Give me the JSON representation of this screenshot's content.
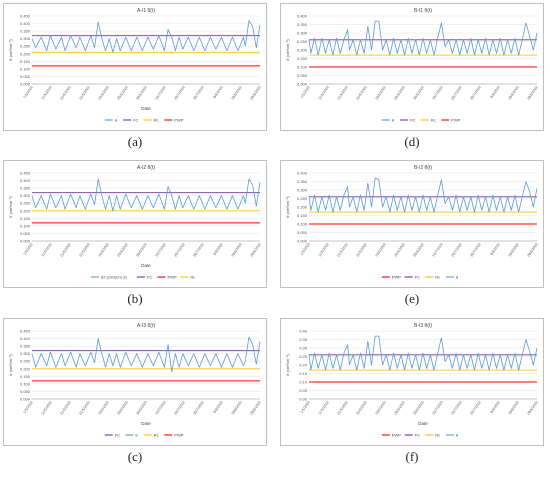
{
  "chart_data": [
    {
      "type": "line",
      "panel_label": "(a)",
      "title": "A-I1 θ(t)",
      "xlabel": "Date",
      "ylabel": "θ (cm³cm⁻³)",
      "ylim": [
        0,
        0.45
      ],
      "yticks": [
        "0.000",
        "0.050",
        "0.100",
        "0.150",
        "0.200",
        "0.250",
        "0.300",
        "0.350",
        "0.400",
        "0.450"
      ],
      "xticks": [
        "1/5/2022",
        "11/5/2022",
        "21/5/2022",
        "31/5/2022",
        "10/6/2022",
        "20/6/2022",
        "30/6/2022",
        "10/7/2022",
        "20/7/2022",
        "30/7/2022",
        "9/8/2022",
        "19/8/2022",
        "29/8/2022"
      ],
      "fc": 0.32,
      "rc": 0.21,
      "pwp": 0.12,
      "theta_x": [
        0,
        2,
        5,
        8,
        10,
        13,
        16,
        18,
        21,
        24,
        26,
        29,
        32,
        34,
        36,
        38,
        40,
        42,
        44,
        46,
        48,
        51,
        54,
        57,
        60,
        63,
        66,
        69,
        72,
        74,
        76,
        78,
        80,
        82,
        85,
        88,
        91,
        94,
        97,
        100,
        103,
        106,
        109,
        112,
        115,
        116,
        118,
        120,
        122,
        124
      ],
      "theta_y": [
        0.3,
        0.24,
        0.31,
        0.22,
        0.32,
        0.23,
        0.31,
        0.22,
        0.32,
        0.24,
        0.31,
        0.22,
        0.32,
        0.24,
        0.41,
        0.3,
        0.22,
        0.3,
        0.21,
        0.3,
        0.22,
        0.31,
        0.22,
        0.31,
        0.22,
        0.31,
        0.23,
        0.32,
        0.22,
        0.36,
        0.31,
        0.22,
        0.31,
        0.23,
        0.31,
        0.22,
        0.31,
        0.22,
        0.31,
        0.23,
        0.31,
        0.22,
        0.31,
        0.22,
        0.31,
        0.25,
        0.42,
        0.38,
        0.24,
        0.39
      ],
      "legend": [
        "θ",
        "FC",
        "Rc",
        "PWP"
      ],
      "colors": {
        "theta": "#5b9bd5",
        "fc": "#7030a0",
        "rc": "#ffc000",
        "pwp": "#ff0000"
      }
    },
    {
      "type": "line",
      "panel_label": "(b)",
      "title": "A-I2 θ(t)",
      "xlabel": "Date",
      "ylabel": "θ (cm³cm⁻³)",
      "ylim": [
        0,
        0.45
      ],
      "yticks": [
        "0.000",
        "0.050",
        "0.100",
        "0.150",
        "0.200",
        "0.250",
        "0.300",
        "0.350",
        "0.400",
        "0.450"
      ],
      "xticks": [
        "1/5/2022",
        "11/5/2022",
        "21/5/2022",
        "31/5/2022",
        "10/6/2022",
        "20/6/2022",
        "30/6/2022",
        "10/7/2022",
        "20/7/2022",
        "30/7/2022",
        "9/8/2022",
        "19/8/2022",
        "29/8/2022"
      ],
      "fc": 0.32,
      "rc": 0.2,
      "pwp": 0.12,
      "theta_x": [
        0,
        2,
        5,
        8,
        10,
        13,
        16,
        18,
        21,
        24,
        26,
        29,
        32,
        34,
        36,
        38,
        40,
        42,
        44,
        46,
        48,
        51,
        54,
        57,
        60,
        63,
        66,
        69,
        72,
        74,
        76,
        78,
        80,
        82,
        85,
        88,
        91,
        94,
        97,
        100,
        103,
        106,
        109,
        112,
        115,
        116,
        118,
        120,
        122,
        124
      ],
      "theta_y": [
        0.3,
        0.22,
        0.3,
        0.21,
        0.31,
        0.22,
        0.3,
        0.21,
        0.31,
        0.22,
        0.3,
        0.21,
        0.31,
        0.24,
        0.41,
        0.3,
        0.21,
        0.3,
        0.2,
        0.3,
        0.21,
        0.31,
        0.22,
        0.3,
        0.21,
        0.3,
        0.22,
        0.31,
        0.21,
        0.36,
        0.3,
        0.21,
        0.3,
        0.22,
        0.3,
        0.21,
        0.3,
        0.21,
        0.3,
        0.22,
        0.3,
        0.21,
        0.3,
        0.21,
        0.3,
        0.25,
        0.41,
        0.37,
        0.23,
        0.39
      ],
      "legend": [
        "θ2 (cm3/cm-3)",
        "FC",
        "PWP",
        "Rc"
      ],
      "colors": {
        "theta": "#5b9bd5",
        "fc": "#7030a0",
        "rc": "#ffc000",
        "pwp": "#ff0000"
      }
    },
    {
      "type": "line",
      "panel_label": "(c)",
      "title": "A-I3 θ(t)",
      "xlabel": "Date",
      "ylabel": "θ (cm³cm⁻³)",
      "ylim": [
        0,
        0.45
      ],
      "yticks": [
        "0.000",
        "0.050",
        "0.100",
        "0.150",
        "0.200",
        "0.250",
        "0.300",
        "0.350",
        "0.400",
        "0.450"
      ],
      "xticks": [
        "1/5/2022",
        "11/5/2022",
        "21/5/2022",
        "31/5/2022",
        "10/6/2022",
        "20/6/2022",
        "30/6/2022",
        "10/7/2022",
        "20/7/2022",
        "30/7/2022",
        "9/8/2022",
        "19/8/2022",
        "29/8/2022"
      ],
      "fc": 0.32,
      "rc": 0.2,
      "pwp": 0.12,
      "theta_x": [
        0,
        2,
        5,
        8,
        10,
        13,
        16,
        18,
        21,
        24,
        26,
        29,
        32,
        34,
        36,
        38,
        40,
        42,
        44,
        46,
        48,
        51,
        54,
        57,
        60,
        63,
        66,
        69,
        72,
        74,
        76,
        78,
        80,
        82,
        85,
        88,
        91,
        94,
        97,
        100,
        103,
        106,
        109,
        112,
        115,
        116,
        118,
        120,
        122,
        124
      ],
      "theta_y": [
        0.3,
        0.21,
        0.3,
        0.22,
        0.31,
        0.21,
        0.3,
        0.22,
        0.31,
        0.21,
        0.3,
        0.22,
        0.31,
        0.24,
        0.4,
        0.3,
        0.21,
        0.3,
        0.22,
        0.3,
        0.21,
        0.31,
        0.22,
        0.3,
        0.21,
        0.3,
        0.22,
        0.31,
        0.21,
        0.36,
        0.18,
        0.3,
        0.21,
        0.3,
        0.22,
        0.3,
        0.21,
        0.3,
        0.22,
        0.3,
        0.21,
        0.3,
        0.21,
        0.3,
        0.22,
        0.25,
        0.41,
        0.36,
        0.23,
        0.38
      ],
      "legend": [
        "FC",
        "θ",
        "Rc",
        "PWP"
      ],
      "colors": {
        "theta": "#5b9bd5",
        "fc": "#7030a0",
        "rc": "#ffc000",
        "pwp": "#ff0000"
      }
    },
    {
      "type": "line",
      "panel_label": "(d)",
      "title": "B-I1 θ(t)",
      "xlabel": "",
      "ylabel": "θ (cm³cm⁻³)",
      "ylim": [
        0,
        0.4
      ],
      "yticks": [
        "0.000",
        "0.050",
        "0.100",
        "0.150",
        "0.200",
        "0.250",
        "0.300",
        "0.350",
        "0.400"
      ],
      "xticks": [
        "1/5/2022",
        "11/5/2022",
        "21/5/2022",
        "31/5/2022",
        "10/6/2022",
        "20/6/2022",
        "30/6/2022",
        "10/7/2022",
        "20/7/2022",
        "30/7/2022",
        "9/8/2022",
        "19/8/2022",
        "29/8/2022"
      ],
      "fc": 0.26,
      "rc": 0.17,
      "pwp": 0.1,
      "theta_x": [
        0,
        1,
        3,
        5,
        7,
        9,
        11,
        13,
        15,
        17,
        19,
        21,
        22,
        24,
        26,
        28,
        30,
        32,
        34,
        36,
        38,
        40,
        42,
        44,
        46,
        48,
        50,
        52,
        54,
        56,
        58,
        60,
        62,
        64,
        66,
        68,
        70,
        72,
        74,
        76,
        78,
        80,
        82,
        84,
        86,
        88,
        90,
        92,
        94,
        96,
        98,
        100,
        102,
        104,
        106,
        108,
        110,
        112,
        114,
        116,
        118,
        120,
        122,
        124
      ],
      "theta_y": [
        0.26,
        0.18,
        0.27,
        0.17,
        0.27,
        0.18,
        0.26,
        0.17,
        0.27,
        0.18,
        0.26,
        0.32,
        0.2,
        0.26,
        0.17,
        0.26,
        0.18,
        0.34,
        0.2,
        0.37,
        0.37,
        0.2,
        0.26,
        0.17,
        0.27,
        0.18,
        0.26,
        0.17,
        0.27,
        0.18,
        0.26,
        0.17,
        0.27,
        0.18,
        0.26,
        0.17,
        0.27,
        0.36,
        0.22,
        0.26,
        0.18,
        0.26,
        0.17,
        0.26,
        0.18,
        0.27,
        0.17,
        0.26,
        0.18,
        0.27,
        0.17,
        0.26,
        0.18,
        0.27,
        0.17,
        0.26,
        0.18,
        0.27,
        0.17,
        0.26,
        0.36,
        0.28,
        0.2,
        0.3
      ],
      "legend": [
        "θ",
        "FC",
        "Rc",
        "PWP"
      ],
      "colors": {
        "theta": "#5b9bd5",
        "fc": "#7030a0",
        "rc": "#ffc000",
        "pwp": "#ff0000"
      }
    },
    {
      "type": "line",
      "panel_label": "(e)",
      "title": "B-I2 θ(t)",
      "xlabel": "",
      "ylabel": "θ (cm³cm⁻³)",
      "ylim": [
        0,
        0.4
      ],
      "yticks": [
        "0.000",
        "0.050",
        "0.100",
        "0.150",
        "0.200",
        "0.250",
        "0.300",
        "0.350",
        "0.400"
      ],
      "xticks": [
        "1/5/2022",
        "11/5/2022",
        "21/5/2022",
        "31/5/2022",
        "10/6/2022",
        "20/6/2022",
        "30/6/2022",
        "10/7/2022",
        "20/7/2022",
        "30/7/2022",
        "9/8/2022",
        "19/8/2022",
        "29/8/2022"
      ],
      "fc": 0.26,
      "rc": 0.17,
      "pwp": 0.1,
      "theta_x": [
        0,
        1,
        3,
        5,
        7,
        9,
        11,
        13,
        15,
        17,
        19,
        21,
        22,
        24,
        26,
        28,
        30,
        32,
        34,
        36,
        38,
        40,
        42,
        44,
        46,
        48,
        50,
        52,
        54,
        56,
        58,
        60,
        62,
        64,
        66,
        68,
        70,
        72,
        74,
        76,
        78,
        80,
        82,
        84,
        86,
        88,
        90,
        92,
        94,
        96,
        98,
        100,
        102,
        104,
        106,
        108,
        110,
        112,
        114,
        116,
        118,
        120,
        122,
        124
      ],
      "theta_y": [
        0.26,
        0.18,
        0.27,
        0.17,
        0.26,
        0.18,
        0.27,
        0.17,
        0.26,
        0.18,
        0.27,
        0.32,
        0.2,
        0.26,
        0.17,
        0.27,
        0.18,
        0.34,
        0.2,
        0.37,
        0.36,
        0.2,
        0.26,
        0.17,
        0.27,
        0.18,
        0.26,
        0.17,
        0.27,
        0.18,
        0.26,
        0.17,
        0.27,
        0.18,
        0.26,
        0.17,
        0.27,
        0.36,
        0.22,
        0.26,
        0.18,
        0.27,
        0.17,
        0.26,
        0.18,
        0.26,
        0.17,
        0.27,
        0.18,
        0.26,
        0.17,
        0.27,
        0.18,
        0.26,
        0.17,
        0.26,
        0.18,
        0.27,
        0.17,
        0.26,
        0.35,
        0.29,
        0.2,
        0.31
      ],
      "legend": [
        "PWP",
        "FC",
        "Rc",
        "θ"
      ],
      "colors": {
        "theta": "#5b9bd5",
        "fc": "#7030a0",
        "rc": "#ffc000",
        "pwp": "#ff0000"
      }
    },
    {
      "type": "line",
      "panel_label": "(f)",
      "title": "B-I3 θ(t)",
      "xlabel": "Date",
      "ylabel": "θ (cm³cm⁻³)",
      "ylim": [
        0,
        0.4
      ],
      "yticks": [
        "0.00",
        "0.05",
        "0.10",
        "0.15",
        "0.20",
        "0.25",
        "0.30",
        "0.35",
        "0.40"
      ],
      "xticks": [
        "1/5/2022",
        "11/5/2022",
        "21/5/2022",
        "31/5/2022",
        "10/6/2022",
        "20/6/2022",
        "30/6/2022",
        "10/7/2022",
        "20/7/2022",
        "30/7/2022",
        "9/8/2022",
        "19/8/2022",
        "29/8/2022"
      ],
      "fc": 0.26,
      "rc": 0.17,
      "pwp": 0.1,
      "theta_x": [
        0,
        1,
        3,
        5,
        7,
        9,
        11,
        13,
        15,
        17,
        19,
        21,
        22,
        24,
        26,
        28,
        30,
        32,
        34,
        36,
        38,
        40,
        42,
        44,
        46,
        48,
        50,
        52,
        54,
        56,
        58,
        60,
        62,
        64,
        66,
        68,
        70,
        72,
        74,
        76,
        78,
        80,
        82,
        84,
        86,
        88,
        90,
        92,
        94,
        96,
        98,
        100,
        102,
        104,
        106,
        108,
        110,
        112,
        114,
        116,
        118,
        120,
        122,
        124
      ],
      "theta_y": [
        0.26,
        0.17,
        0.27,
        0.18,
        0.26,
        0.17,
        0.27,
        0.18,
        0.26,
        0.17,
        0.27,
        0.32,
        0.2,
        0.26,
        0.17,
        0.27,
        0.18,
        0.34,
        0.2,
        0.37,
        0.37,
        0.2,
        0.26,
        0.17,
        0.27,
        0.18,
        0.26,
        0.17,
        0.27,
        0.18,
        0.26,
        0.17,
        0.27,
        0.18,
        0.26,
        0.17,
        0.27,
        0.36,
        0.22,
        0.26,
        0.18,
        0.27,
        0.17,
        0.26,
        0.18,
        0.26,
        0.17,
        0.27,
        0.18,
        0.26,
        0.17,
        0.27,
        0.18,
        0.26,
        0.17,
        0.26,
        0.18,
        0.27,
        0.17,
        0.26,
        0.35,
        0.28,
        0.2,
        0.3
      ],
      "legend": [
        "PWP",
        "FC",
        "Rc",
        "θ"
      ],
      "colors": {
        "theta": "#5b9bd5",
        "fc": "#7030a0",
        "rc": "#ffc000",
        "pwp": "#ff0000"
      }
    }
  ]
}
